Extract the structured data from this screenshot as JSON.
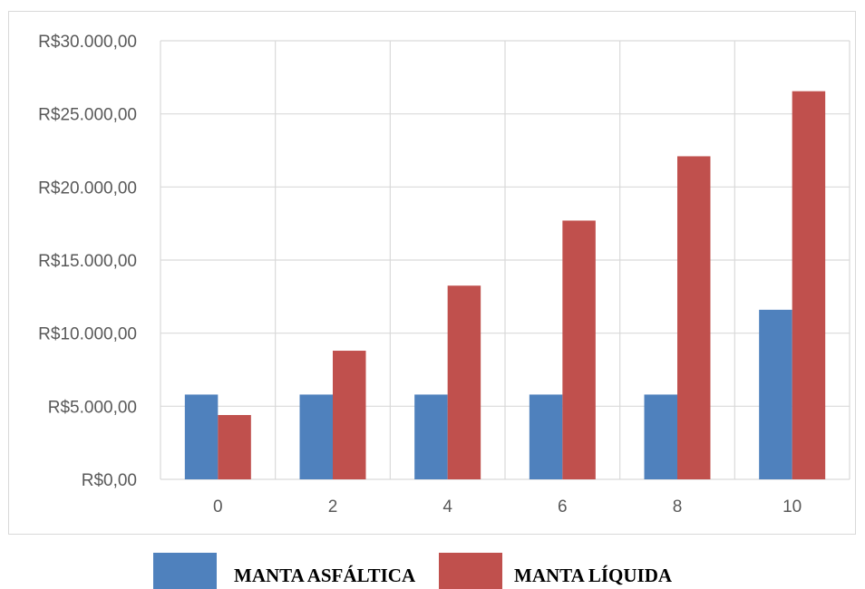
{
  "chart_data": {
    "type": "bar",
    "categories": [
      "0",
      "2",
      "4",
      "6",
      "8",
      "10"
    ],
    "series": [
      {
        "name": "MANTA ASFÁLTICA",
        "color": "#4f81bd",
        "values": [
          5800,
          5800,
          5800,
          5800,
          5800,
          11600
        ]
      },
      {
        "name": "MANTA LÍQUIDA",
        "color": "#c0504d",
        "values": [
          4400,
          8800,
          13250,
          17700,
          22100,
          26550
        ]
      }
    ],
    "y_ticks": [
      "R$0,00",
      "R$5.000,00",
      "R$10.000,00",
      "R$15.000,00",
      "R$20.000,00",
      "R$25.000,00",
      "R$30.000,00"
    ],
    "ylim": [
      0,
      30000
    ],
    "grid": true,
    "legend_position": "bottom",
    "title": "",
    "xlabel": "",
    "ylabel": ""
  }
}
